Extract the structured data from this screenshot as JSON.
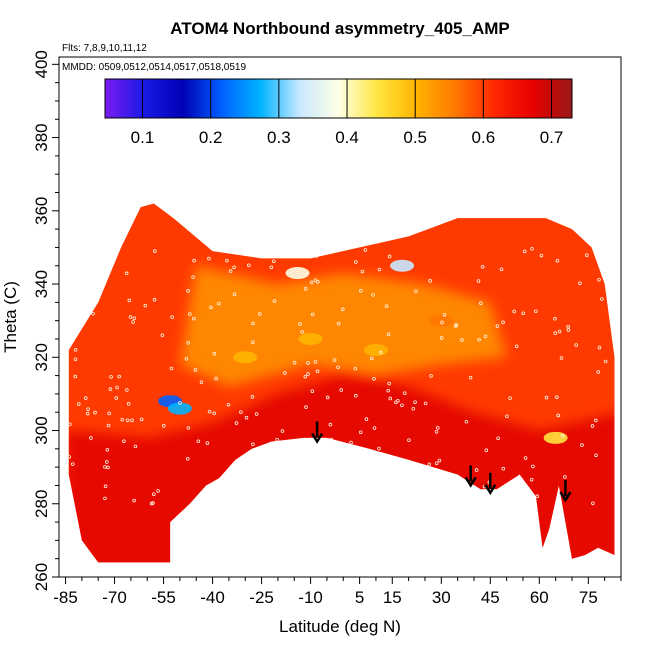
{
  "chart_data": {
    "type": "heatmap",
    "title": "ATOM4 Northbound asymmetry_405_AMP",
    "flights_label": "Flts: 7,8,9,10,11,12",
    "dates_label": "MMDD: 0509,0512,0514,0517,0518,0519",
    "xlabel": "Latitude (deg N)",
    "ylabel": "Theta (C)",
    "xlim": [
      -87,
      85
    ],
    "ylim": [
      260,
      402
    ],
    "x_ticks": [
      -85,
      -70,
      -55,
      -40,
      -25,
      -10,
      5,
      15,
      30,
      45,
      60,
      75
    ],
    "x_tick_labels": [
      "-85",
      "-70",
      "-55",
      "-40",
      "-25",
      "-10",
      "5",
      "15",
      "30",
      "45",
      "60",
      "75"
    ],
    "y_ticks": [
      260,
      280,
      300,
      320,
      340,
      360,
      380,
      400
    ],
    "y_tick_labels": [
      "260",
      "280",
      "300",
      "320",
      "340",
      "360",
      "380",
      "400"
    ],
    "colorbar": {
      "range": [
        0.045,
        0.73
      ],
      "ticks": [
        0.1,
        0.2,
        0.3,
        0.4,
        0.5,
        0.6,
        0.7
      ],
      "tick_labels": [
        "0.1",
        "0.2",
        "0.3",
        "0.4",
        "0.5",
        "0.6",
        "0.7"
      ],
      "colors": [
        "#7a1cf0",
        "#1a1ae6",
        "#0000b4",
        "#0060ff",
        "#00b4ff",
        "#c8e8ff",
        "#ffffe6",
        "#ffe640",
        "#ffb400",
        "#ff7800",
        "#ff2800",
        "#e60000",
        "#9a1818"
      ]
    },
    "data_envelope": {
      "top": [
        [
          -84,
          322
        ],
        [
          -75,
          335
        ],
        [
          -68,
          350
        ],
        [
          -62,
          361
        ],
        [
          -58,
          362
        ],
        [
          -52,
          358
        ],
        [
          -40,
          349
        ],
        [
          -25,
          347
        ],
        [
          -10,
          347
        ],
        [
          5,
          350
        ],
        [
          20,
          353
        ],
        [
          35,
          358
        ],
        [
          50,
          358
        ],
        [
          62,
          358
        ],
        [
          70,
          355
        ],
        [
          76,
          350
        ],
        [
          80,
          340
        ],
        [
          83,
          320
        ]
      ],
      "bottom": [
        [
          83,
          266
        ],
        [
          78,
          268
        ],
        [
          74,
          266
        ],
        [
          70,
          265
        ],
        [
          66,
          285
        ],
        [
          63,
          273
        ],
        [
          61,
          268
        ],
        [
          59,
          282
        ],
        [
          54,
          288
        ],
        [
          47,
          284
        ],
        [
          42,
          284
        ],
        [
          35,
          288
        ],
        [
          20,
          292
        ],
        [
          8,
          295
        ],
        [
          -5,
          298
        ],
        [
          -12,
          298
        ],
        [
          -22,
          297
        ],
        [
          -28,
          295
        ],
        [
          -33,
          292
        ],
        [
          -38,
          287
        ],
        [
          -42,
          285
        ],
        [
          -47,
          280
        ],
        [
          -53,
          275
        ],
        [
          -53,
          264
        ],
        [
          -75,
          264
        ],
        [
          -80,
          270
        ],
        [
          -84,
          288
        ]
      ]
    },
    "hot_spots": [
      {
        "lat": -53,
        "theta": 308,
        "value": 0.2
      },
      {
        "lat": -50,
        "theta": 306,
        "value": 0.28
      },
      {
        "lat": -14,
        "theta": 343,
        "value": 0.38
      },
      {
        "lat": 18,
        "theta": 345,
        "value": 0.33
      },
      {
        "lat": 65,
        "theta": 298,
        "value": 0.45
      },
      {
        "lat": -30,
        "theta": 320,
        "value": 0.48
      },
      {
        "lat": -10,
        "theta": 325,
        "value": 0.5
      },
      {
        "lat": 10,
        "theta": 322,
        "value": 0.52
      },
      {
        "lat": 30,
        "theta": 330,
        "value": 0.55
      }
    ],
    "tropopause_markers_lat": [
      -8,
      39,
      45,
      68
    ],
    "tropopause_markers_theta": [
      297,
      285,
      283,
      281
    ]
  }
}
